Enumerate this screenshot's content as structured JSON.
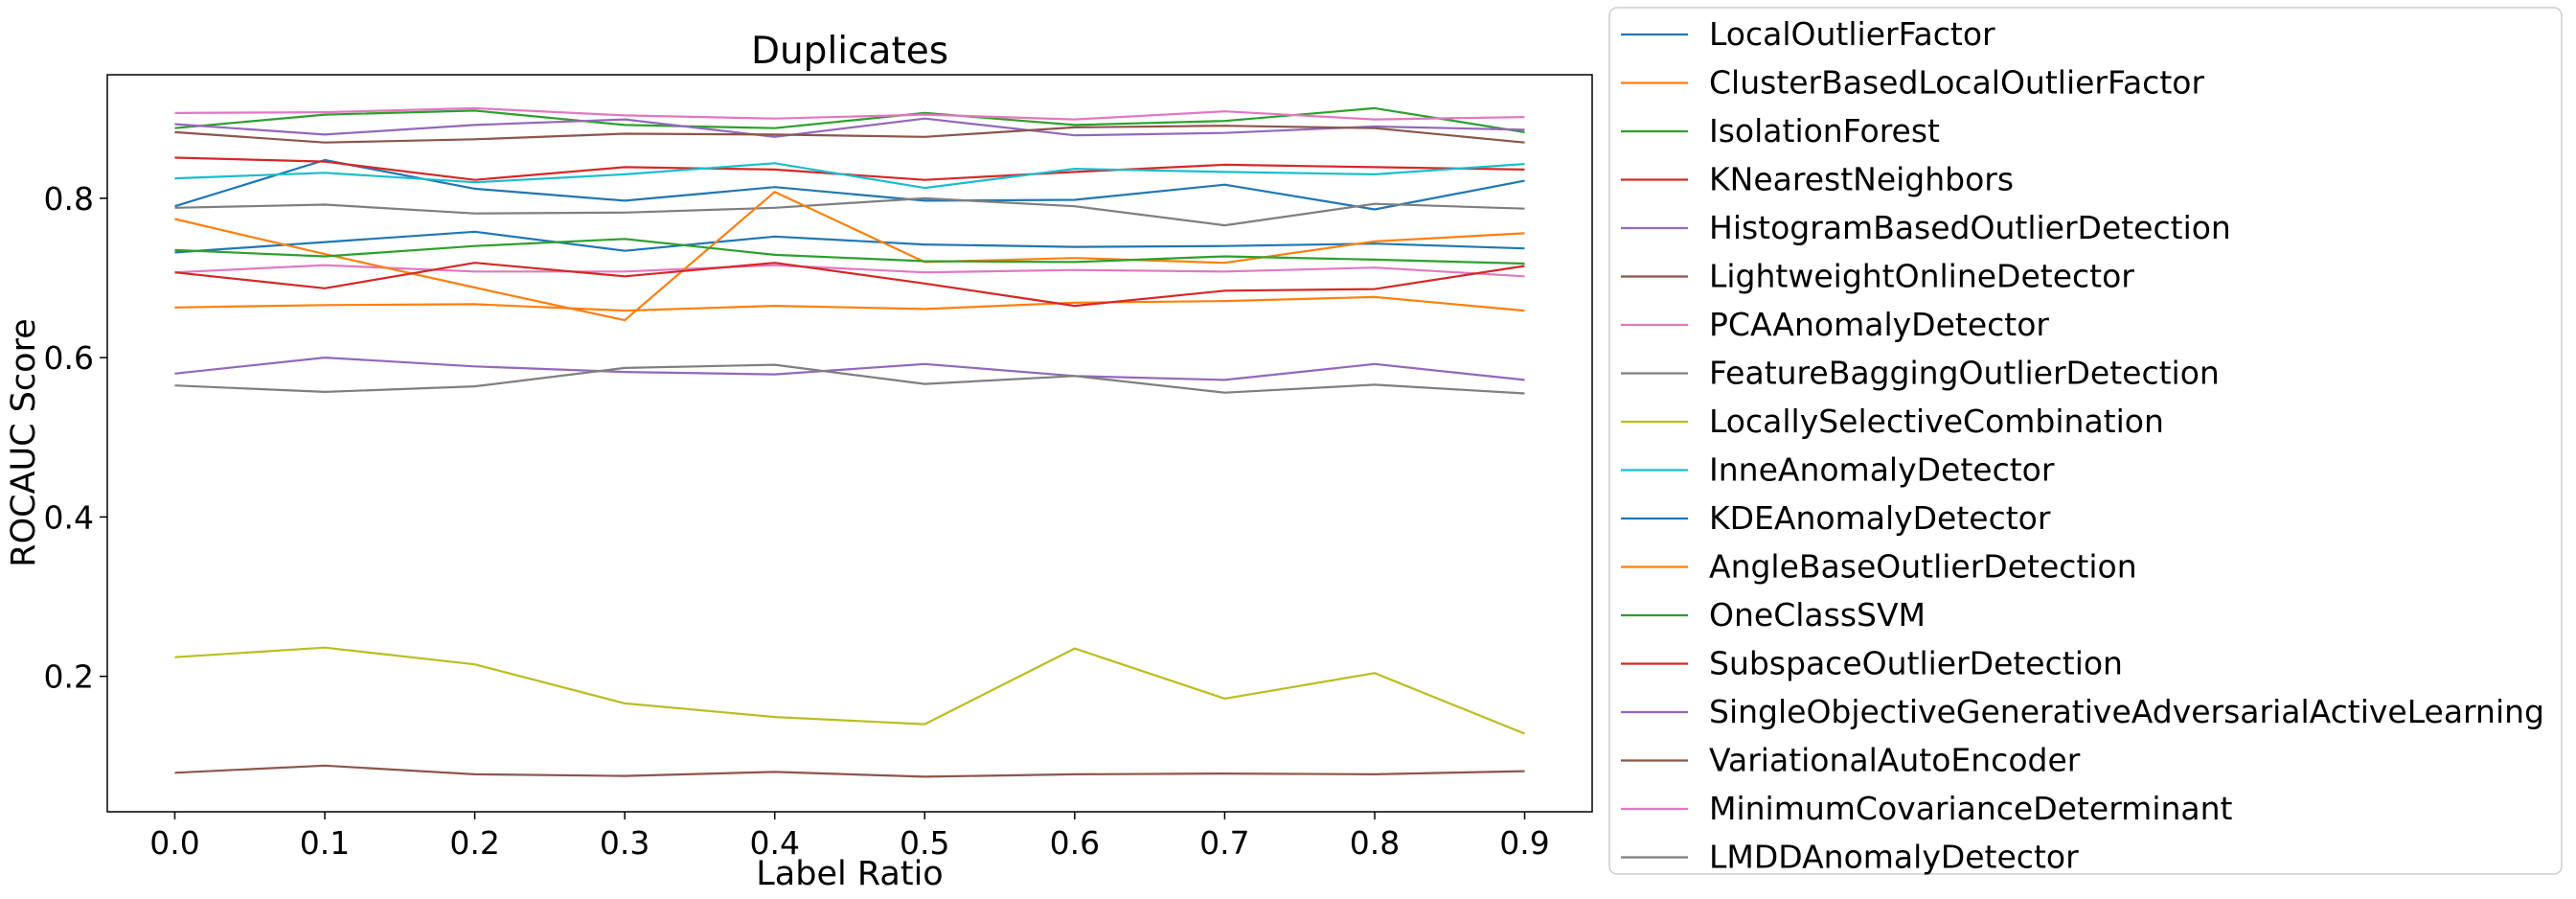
{
  "chart_data": {
    "type": "line",
    "title": "Duplicates",
    "xlabel": "Label Ratio",
    "ylabel": "ROCAUC Score",
    "x": [
      0.0,
      0.1,
      0.2,
      0.3,
      0.4,
      0.5,
      0.6,
      0.7,
      0.8,
      0.9
    ],
    "x_tick_labels": [
      "0.0",
      "0.1",
      "0.2",
      "0.3",
      "0.4",
      "0.5",
      "0.6",
      "0.7",
      "0.8",
      "0.9"
    ],
    "y_ticks": [
      0.2,
      0.4,
      0.6,
      0.8
    ],
    "y_tick_labels": [
      "0.2",
      "0.4",
      "0.6",
      "0.8"
    ],
    "xlim": [
      -0.045,
      0.945
    ],
    "ylim": [
      0.03,
      0.955
    ],
    "grid": false,
    "legend_position": "outside-right",
    "series": [
      {
        "name": "LocalOutlierFactor",
        "color": "#1f77b4",
        "values": [
          0.79,
          0.848,
          0.812,
          0.797,
          0.814,
          0.797,
          0.798,
          0.817,
          0.786,
          0.822
        ]
      },
      {
        "name": "ClusterBasedLocalOutlierFactor",
        "color": "#ff7f0e",
        "values": [
          0.663,
          0.666,
          0.667,
          0.659,
          0.665,
          0.661,
          0.669,
          0.671,
          0.676,
          0.659
        ]
      },
      {
        "name": "IsolationForest",
        "color": "#2ca02c",
        "values": [
          0.888,
          0.905,
          0.91,
          0.892,
          0.888,
          0.907,
          0.892,
          0.897,
          0.913,
          0.883
        ]
      },
      {
        "name": "KNearestNeighbors",
        "color": "#d62728",
        "values": [
          0.851,
          0.846,
          0.823,
          0.839,
          0.836,
          0.823,
          0.833,
          0.842,
          0.839,
          0.836
        ]
      },
      {
        "name": "HistogramBasedOutlierDetection",
        "color": "#9467bd",
        "values": [
          0.58,
          0.6,
          0.589,
          0.582,
          0.579,
          0.592,
          0.577,
          0.572,
          0.592,
          0.572
        ]
      },
      {
        "name": "LightweightOnlineDetector",
        "color": "#8c564b",
        "values": [
          0.079,
          0.088,
          0.077,
          0.075,
          0.08,
          0.074,
          0.077,
          0.078,
          0.077,
          0.081
        ]
      },
      {
        "name": "PCAAnomalyDetector",
        "color": "#e377c2",
        "values": [
          0.707,
          0.716,
          0.708,
          0.708,
          0.716,
          0.707,
          0.71,
          0.708,
          0.713,
          0.702
        ]
      },
      {
        "name": "FeatureBaggingOutlierDetection",
        "color": "#7f7f7f",
        "values": [
          0.788,
          0.792,
          0.781,
          0.782,
          0.788,
          0.8,
          0.79,
          0.766,
          0.793,
          0.787
        ]
      },
      {
        "name": "LocallySelectiveCombination",
        "color": "#bcbd22",
        "values": [
          0.224,
          0.236,
          0.215,
          0.166,
          0.149,
          0.14,
          0.235,
          0.172,
          0.204,
          0.128
        ]
      },
      {
        "name": "InneAnomalyDetector",
        "color": "#17becf",
        "values": [
          0.825,
          0.832,
          0.82,
          0.83,
          0.844,
          0.813,
          0.837,
          0.833,
          0.83,
          0.843
        ]
      },
      {
        "name": "KDEAnomalyDetector",
        "color": "#1f77b4",
        "values": [
          0.732,
          0.745,
          0.758,
          0.734,
          0.752,
          0.742,
          0.739,
          0.74,
          0.743,
          0.737
        ]
      },
      {
        "name": "AngleBaseOutlierDetection",
        "color": "#ff7f0e",
        "values": [
          0.774,
          0.73,
          0.688,
          0.647,
          0.808,
          0.72,
          0.725,
          0.719,
          0.746,
          0.756
        ]
      },
      {
        "name": "OneClassSVM",
        "color": "#2ca02c",
        "values": [
          0.735,
          0.727,
          0.74,
          0.749,
          0.729,
          0.721,
          0.72,
          0.727,
          0.723,
          0.718
        ]
      },
      {
        "name": "SubspaceOutlierDetection",
        "color": "#d62728",
        "values": [
          0.707,
          0.687,
          0.719,
          0.702,
          0.719,
          0.693,
          0.665,
          0.684,
          0.686,
          0.715
        ]
      },
      {
        "name": "SingleObjectiveGenerativeAdversarialActiveLearning",
        "color": "#9467bd",
        "values": [
          0.893,
          0.88,
          0.892,
          0.899,
          0.877,
          0.9,
          0.879,
          0.882,
          0.89,
          0.886
        ]
      },
      {
        "name": "VariationalAutoEncoder",
        "color": "#8c564b",
        "values": [
          0.883,
          0.87,
          0.874,
          0.881,
          0.88,
          0.877,
          0.889,
          0.891,
          0.888,
          0.87
        ]
      },
      {
        "name": "MinimumCovarianceDeterminant",
        "color": "#e377c2",
        "values": [
          0.907,
          0.908,
          0.913,
          0.904,
          0.9,
          0.905,
          0.899,
          0.909,
          0.899,
          0.902
        ]
      },
      {
        "name": "LMDDAnomalyDetector",
        "color": "#7f7f7f",
        "values": [
          0.565,
          0.557,
          0.564,
          0.587,
          0.591,
          0.567,
          0.577,
          0.556,
          0.566,
          0.555
        ]
      }
    ]
  }
}
